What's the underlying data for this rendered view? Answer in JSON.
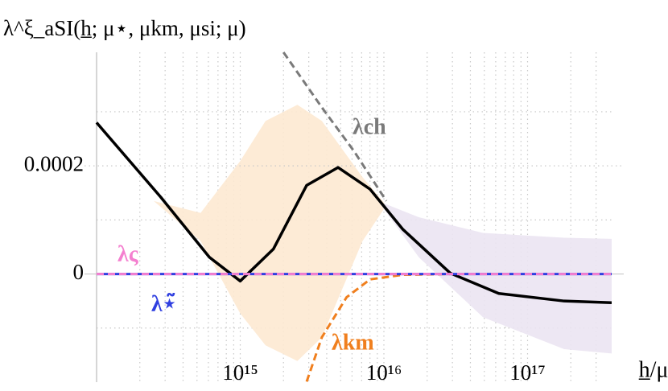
{
  "chart_data": {
    "type": "line",
    "title": "λ^ξ_aSI(h̲; μ⋆, μkm, μsi; μ)",
    "x_label": "h̲/μ",
    "xscale": "log",
    "xlim": [
      100000000000000.0,
      3.85e+17
    ],
    "xticks": [
      {
        "value": 1000000000000000.0,
        "label": "10¹⁵"
      },
      {
        "value": 1e+16,
        "label": "10¹⁶"
      },
      {
        "value": 1e+17,
        "label": "10¹⁷"
      }
    ],
    "x_minor_ticks": [
      200000000000000.0,
      300000000000000.0,
      400000000000000.0,
      500000000000000.0,
      600000000000000.0,
      700000000000000.0,
      800000000000000.0,
      900000000000000.0,
      2000000000000000.0,
      3000000000000000.0,
      4000000000000000.0,
      5000000000000000.0,
      6000000000000000.0,
      7000000000000000.0,
      8000000000000000.0,
      9000000000000000.0,
      2e+16,
      3e+16,
      4e+16,
      5e+16,
      6e+16,
      7e+16,
      8e+16,
      9e+16,
      2e+17,
      3e+17
    ],
    "ylim": [
      -0.0002,
      0.00041
    ],
    "yticks": [
      0,
      0.0002
    ],
    "y_minor_ticks": [
      -0.0001,
      0.0001,
      0.0003
    ],
    "grid": true,
    "bands": [
      {
        "color": "#fde9d2",
        "x": [
          250000000000000.0,
          530000000000000.0,
          1000000000000000.0,
          1500000000000000.0,
          2500000000000000.0,
          3700000000000000.0,
          7100000000000000.0,
          1.04e+16
        ],
        "upper": [
          0.000135,
          0.000113,
          0.000209,
          0.000283,
          0.000313,
          0.000283,
          0.000179,
          0.000127
        ],
        "lower": [
          0.000135,
          6.1e-05,
          -7.3e-05,
          -0.000132,
          -0.000161,
          -0.000117,
          6.1e-05,
          0.000127
        ]
      },
      {
        "color": "#ebe4f2",
        "x": [
          9100000000000000.0,
          1.75e+16,
          4.9e+16,
          1.8e+17,
          3.85e+17
        ],
        "upper": [
          0.000135,
          0.000105,
          7.6e-05,
          6.7e-05,
          6.5e-05
        ],
        "lower": [
          0.000135,
          3.1e-05,
          -8e-05,
          -0.000139,
          -0.000147
        ]
      }
    ],
    "series": [
      {
        "color": "#000000",
        "x": [
          100000000000000.0,
          280000000000000.0,
          610000000000000.0,
          1000000000000000.0,
          1700000000000000.0,
          2900000000000000.0,
          4800000000000000.0,
          8000000000000000.0,
          1.35e+16,
          2.9e+16,
          6.3e+16,
          1.8e+17,
          3.85e+17
        ],
        "values": [
          0.00028,
          0.000142,
          3.1e-05,
          -1.3e-05,
          4.6e-05,
          0.000164,
          0.000197,
          0.000157,
          8.3e-05,
          1.5e-06,
          -3.6e-05,
          -5e-05,
          -5.3e-05
        ]
      },
      {
        "name": "λch",
        "color": "#7a7a7a",
        "dashed": true,
        "x": [
          2000000000000000.0,
          3700000000000000.0,
          6200000000000000.0,
          1.04e+16
        ],
        "values": [
          0.00041,
          0.000308,
          0.000227,
          0.000135
        ]
      },
      {
        "name": "λkm",
        "color": "#f07f1e",
        "dashed": true,
        "x": [
          2900000000000000.0,
          3700000000000000.0,
          5500000000000000.0,
          8000000000000000.0,
          1.35e+16,
          2.9e+16
        ],
        "values": [
          -0.000199,
          -0.000117,
          -4.3e-05,
          -1e-05,
          -1.5e-06,
          0
        ]
      },
      {
        "name": "λ⋆̃",
        "color": "#2f3fe0",
        "x": [
          100000000000000.0,
          3.85e+17
        ],
        "values": [
          0,
          0
        ]
      },
      {
        "name": "λς",
        "color": "#f47fcf",
        "dashed": true,
        "x": [
          100000000000000.0,
          3.85e+17
        ],
        "values": [
          0,
          0
        ]
      }
    ]
  }
}
